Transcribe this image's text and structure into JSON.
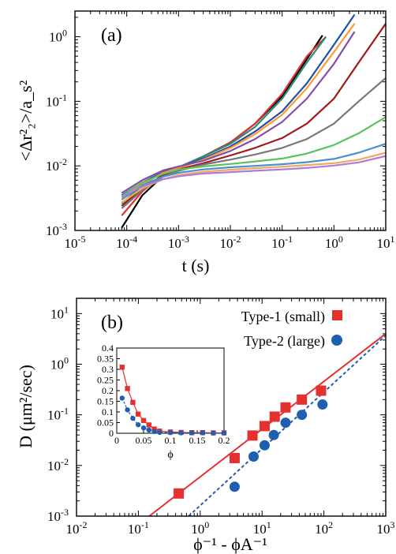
{
  "chart_data": [
    {
      "type": "line",
      "panel_label": "(a)",
      "xlabel": "t (s)",
      "ylabel": "<Δr²₂>/a_s²",
      "xscale": "log",
      "yscale": "log",
      "xlim": [
        1e-05,
        10
      ],
      "ylim": [
        0.001,
        2.5
      ],
      "xticks": [
        {
          "v": 1e-05,
          "base": "10",
          "exp": "-5"
        },
        {
          "v": 0.0001,
          "base": "10",
          "exp": "-4"
        },
        {
          "v": 0.001,
          "base": "10",
          "exp": "-3"
        },
        {
          "v": 0.01,
          "base": "10",
          "exp": "-2"
        },
        {
          "v": 0.1,
          "base": "10",
          "exp": "-1"
        },
        {
          "v": 1,
          "base": "10",
          "exp": "0"
        },
        {
          "v": 10,
          "base": "10",
          "exp": "1"
        }
      ],
      "yticks": [
        {
          "v": 0.001,
          "base": "10",
          "exp": "-3"
        },
        {
          "v": 0.01,
          "base": "10",
          "exp": "-2"
        },
        {
          "v": 0.1,
          "base": "10",
          "exp": "-1"
        },
        {
          "v": 1,
          "base": "10",
          "exp": "0"
        }
      ],
      "series": [
        {
          "color": "#000000",
          "x": [
            8e-05,
            0.0002,
            0.0005,
            0.001,
            0.003,
            0.01,
            0.03,
            0.1,
            0.3,
            0.6
          ],
          "y": [
            0.0011,
            0.0035,
            0.007,
            0.009,
            0.014,
            0.023,
            0.045,
            0.12,
            0.45,
            1.05
          ]
        },
        {
          "color": "#e53030",
          "x": [
            8e-05,
            0.0002,
            0.0005,
            0.001,
            0.003,
            0.01,
            0.03,
            0.1,
            0.3,
            0.7
          ],
          "y": [
            0.0017,
            0.004,
            0.0075,
            0.0095,
            0.014,
            0.023,
            0.045,
            0.13,
            0.5,
            1.0
          ]
        },
        {
          "color": "#2a8a7a",
          "x": [
            8e-05,
            0.0002,
            0.0005,
            0.001,
            0.003,
            0.01,
            0.03,
            0.1,
            0.3,
            0.7
          ],
          "y": [
            0.0026,
            0.005,
            0.008,
            0.0095,
            0.014,
            0.022,
            0.04,
            0.11,
            0.4,
            1.0
          ]
        },
        {
          "color": "#1f4fa8",
          "x": [
            8e-05,
            0.0002,
            0.0005,
            0.001,
            0.003,
            0.01,
            0.03,
            0.1,
            0.3,
            1,
            2.5
          ],
          "y": [
            0.0035,
            0.0055,
            0.008,
            0.0095,
            0.013,
            0.02,
            0.034,
            0.07,
            0.19,
            0.75,
            2.2
          ]
        },
        {
          "color": "#ff9a30",
          "x": [
            8e-05,
            0.0002,
            0.0005,
            0.001,
            0.003,
            0.01,
            0.03,
            0.1,
            0.3,
            1,
            2.5
          ],
          "y": [
            0.0031,
            0.0052,
            0.0078,
            0.0092,
            0.0125,
            0.019,
            0.031,
            0.062,
            0.16,
            0.58,
            1.6
          ]
        },
        {
          "color": "#8a4aa8",
          "x": [
            8e-05,
            0.0002,
            0.0005,
            0.001,
            0.003,
            0.01,
            0.03,
            0.1,
            0.3,
            1,
            2.5
          ],
          "y": [
            0.0038,
            0.006,
            0.0085,
            0.0098,
            0.012,
            0.017,
            0.026,
            0.048,
            0.11,
            0.38,
            1.2
          ]
        },
        {
          "color": "#a01a1a",
          "x": [
            8e-05,
            0.0002,
            0.0005,
            0.001,
            0.003,
            0.01,
            0.03,
            0.1,
            0.3,
            1,
            3,
            10
          ],
          "y": [
            0.0024,
            0.0045,
            0.0072,
            0.0088,
            0.011,
            0.0145,
            0.019,
            0.027,
            0.045,
            0.11,
            0.4,
            1.6
          ]
        },
        {
          "color": "#777777",
          "x": [
            8e-05,
            0.0002,
            0.0005,
            0.001,
            0.003,
            0.01,
            0.03,
            0.1,
            0.3,
            1,
            3,
            10
          ],
          "y": [
            0.0022,
            0.0042,
            0.0068,
            0.0084,
            0.0105,
            0.0125,
            0.015,
            0.019,
            0.026,
            0.045,
            0.1,
            0.23
          ]
        },
        {
          "color": "#5cc35c",
          "x": [
            8e-05,
            0.0002,
            0.0005,
            0.001,
            0.003,
            0.01,
            0.03,
            0.1,
            0.3,
            1,
            3,
            10
          ],
          "y": [
            0.0034,
            0.0055,
            0.0075,
            0.0088,
            0.0098,
            0.0107,
            0.0117,
            0.013,
            0.0155,
            0.021,
            0.032,
            0.057
          ]
        },
        {
          "color": "#4a90d0",
          "x": [
            8e-05,
            0.0002,
            0.0005,
            0.001,
            0.003,
            0.01,
            0.03,
            0.1,
            0.3,
            1,
            3,
            10
          ],
          "y": [
            0.003,
            0.005,
            0.0068,
            0.0078,
            0.0088,
            0.0095,
            0.01,
            0.0106,
            0.0114,
            0.0128,
            0.016,
            0.022
          ]
        },
        {
          "color": "#f2a860",
          "x": [
            8e-05,
            0.0002,
            0.0005,
            0.001,
            0.003,
            0.01,
            0.03,
            0.1,
            0.3,
            1,
            3,
            10
          ],
          "y": [
            0.0027,
            0.0045,
            0.0062,
            0.0072,
            0.0081,
            0.0087,
            0.0092,
            0.0097,
            0.0103,
            0.011,
            0.0125,
            0.016
          ]
        },
        {
          "color": "#b07ad8",
          "x": [
            8e-05,
            0.0002,
            0.0005,
            0.001,
            0.003,
            0.01,
            0.03,
            0.1,
            0.3,
            1,
            3,
            10
          ],
          "y": [
            0.0033,
            0.0048,
            0.0062,
            0.0069,
            0.0076,
            0.008,
            0.0084,
            0.0088,
            0.0093,
            0.0101,
            0.0113,
            0.0142
          ]
        }
      ]
    },
    {
      "type": "scatter",
      "panel_label": "(b)",
      "xlabel": "ϕ⁻¹ - ϕA⁻¹",
      "ylabel": "D (μm²/sec)",
      "xscale": "log",
      "yscale": "log",
      "xlim": [
        0.01,
        1000
      ],
      "ylim": [
        0.001,
        20
      ],
      "xticks": [
        {
          "v": 0.01,
          "base": "10",
          "exp": "-2"
        },
        {
          "v": 0.1,
          "base": "10",
          "exp": "-1"
        },
        {
          "v": 1,
          "base": "10",
          "exp": "0"
        },
        {
          "v": 10,
          "base": "10",
          "exp": "1"
        },
        {
          "v": 100,
          "base": "10",
          "exp": "2"
        },
        {
          "v": 1000,
          "base": "10",
          "exp": "3"
        }
      ],
      "yticks": [
        {
          "v": 0.001,
          "base": "10",
          "exp": "-3"
        },
        {
          "v": 0.01,
          "base": "10",
          "exp": "-2"
        },
        {
          "v": 0.1,
          "base": "10",
          "exp": "-1"
        },
        {
          "v": 1,
          "base": "10",
          "exp": "0"
        },
        {
          "v": 10,
          "base": "10",
          "exp": "1"
        }
      ],
      "legend": "top-right",
      "series": [
        {
          "name": "Type-1 (small)",
          "marker": "square",
          "color": "#e53030",
          "x": [
            0.45,
            3.6,
            7,
            11,
            16,
            24,
            44,
            90
          ],
          "y": [
            0.0028,
            0.014,
            0.039,
            0.06,
            0.092,
            0.14,
            0.2,
            0.3
          ]
        },
        {
          "name": "Type-2 (large)",
          "marker": "circle",
          "color": "#1f5fb0",
          "x": [
            3.6,
            7.3,
            11,
            15.5,
            24,
            44,
            95
          ],
          "y": [
            0.0038,
            0.015,
            0.025,
            0.04,
            0.07,
            0.1,
            0.16
          ]
        }
      ],
      "fit_lines": [
        {
          "color": "#e53030",
          "style": "solid",
          "x": [
            0.15,
            1000
          ],
          "y": [
            0.001,
            4.0
          ]
        },
        {
          "color": "#1f5fb0",
          "style": "dotted",
          "x": [
            0.65,
            1000
          ],
          "y": [
            0.001,
            3.7
          ]
        }
      ],
      "inset": {
        "xlabel": "ϕ",
        "xlim": [
          0,
          0.2
        ],
        "ylim": [
          0,
          0.4
        ],
        "xticks": [
          "0",
          "0.05",
          "0.1",
          "0.15",
          "0.2"
        ],
        "yticks": [
          "0",
          "0.05",
          "0.1",
          "0.15",
          "0.2",
          "0.25",
          "0.3",
          "0.35",
          "0.4"
        ],
        "series": [
          {
            "name": "Type-1 (small)",
            "marker": "square",
            "color": "#e53030",
            "x": [
              0.01,
              0.02,
              0.03,
              0.04,
              0.05,
              0.06,
              0.07,
              0.08,
              0.1,
              0.12,
              0.14,
              0.16,
              0.18,
              0.2
            ],
            "y": [
              0.31,
              0.21,
              0.145,
              0.09,
              0.06,
              0.039,
              0.02,
              0.01,
              0.006,
              0.004,
              0.003,
              0.003,
              0.002,
              0.002
            ]
          },
          {
            "name": "Type-2 (large)",
            "marker": "circle",
            "color": "#1f5fb0",
            "x": [
              0.01,
              0.02,
              0.03,
              0.04,
              0.05,
              0.06,
              0.07,
              0.08,
              0.1,
              0.12,
              0.14,
              0.16,
              0.18,
              0.2
            ],
            "y": [
              0.165,
              0.11,
              0.07,
              0.04,
              0.025,
              0.015,
              0.008,
              0.004,
              0.003,
              0.002,
              0.002,
              0.002,
              0.001,
              0.001
            ]
          }
        ]
      }
    }
  ]
}
